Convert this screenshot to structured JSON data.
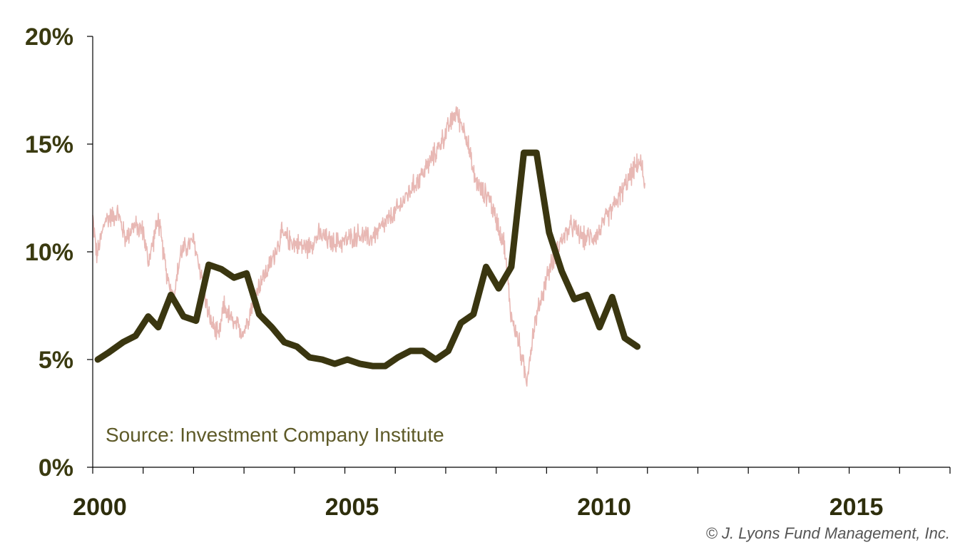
{
  "chart_data": {
    "type": "line",
    "title": "",
    "xlabel": "",
    "ylabel": "",
    "xlim": [
      2000,
      2017
    ],
    "ylim": [
      0,
      20
    ],
    "y_ticks": [
      "0%",
      "5%",
      "10%",
      "15%",
      "20%"
    ],
    "y_tick_values": [
      0,
      5,
      10,
      15,
      20
    ],
    "x_ticks": [
      "2000",
      "2005",
      "2010",
      "2015"
    ],
    "x_tick_values": [
      2000,
      2005,
      2010,
      2015
    ],
    "x_minor_ticks": [
      2000,
      2001,
      2002,
      2003,
      2004,
      2005,
      2006,
      2007,
      2008,
      2009,
      2010,
      2011,
      2012,
      2013,
      2014,
      2015,
      2016,
      2017
    ],
    "grid": false,
    "legend": "none",
    "annotations": {
      "source": "Source: Investment Company Institute",
      "copyright": "© J. Lyons Fund Management, Inc."
    },
    "series": [
      {
        "color": "#e8b8b4",
        "style": "thin noisy background line",
        "noise_amplitude": 0.45,
        "x": [
          2000.0,
          2000.08,
          2000.25,
          2000.5,
          2000.65,
          2000.8,
          2001.0,
          2001.1,
          2001.3,
          2001.45,
          2001.6,
          2001.75,
          2002.0,
          2002.15,
          2002.3,
          2002.5,
          2002.6,
          2002.8,
          2003.0,
          2003.15,
          2003.3,
          2003.5,
          2003.75,
          2004.0,
          2004.25,
          2004.5,
          2004.75,
          2005.0,
          2005.25,
          2005.5,
          2005.75,
          2006.0,
          2006.25,
          2006.5,
          2006.75,
          2007.0,
          2007.2,
          2007.4,
          2007.55,
          2007.7,
          2007.85,
          2008.0,
          2008.15,
          2008.3,
          2008.45,
          2008.6,
          2008.75,
          2009.0,
          2009.25,
          2009.5,
          2009.75,
          2010.0,
          2010.25,
          2010.5,
          2010.7,
          2010.85,
          2010.95
        ],
        "y": [
          11.6,
          9.8,
          11.5,
          11.8,
          10.6,
          11.2,
          11.0,
          9.5,
          11.5,
          9.2,
          7.8,
          10.0,
          10.5,
          9.0,
          7.0,
          6.0,
          7.5,
          6.6,
          6.3,
          7.5,
          8.5,
          9.3,
          10.8,
          10.4,
          10.2,
          10.8,
          10.4,
          10.5,
          10.8,
          10.6,
          11.2,
          11.8,
          12.7,
          13.5,
          14.4,
          15.5,
          16.5,
          15.5,
          13.6,
          12.8,
          12.6,
          11.5,
          10.5,
          7.0,
          5.8,
          4.0,
          6.5,
          8.8,
          10.4,
          11.2,
          10.6,
          10.8,
          11.8,
          12.8,
          13.7,
          14.2,
          13.2
        ]
      },
      {
        "color": "#3a3610",
        "style": "thick line",
        "x": [
          2000.1,
          2000.3,
          2000.6,
          2000.85,
          2001.1,
          2001.3,
          2001.55,
          2001.8,
          2002.05,
          2002.3,
          2002.55,
          2002.8,
          2003.05,
          2003.3,
          2003.55,
          2003.8,
          2004.05,
          2004.3,
          2004.55,
          2004.8,
          2005.05,
          2005.3,
          2005.55,
          2005.8,
          2006.05,
          2006.3,
          2006.55,
          2006.8,
          2007.05,
          2007.3,
          2007.55,
          2007.8,
          2008.05,
          2008.3,
          2008.55,
          2008.8,
          2009.05,
          2009.3,
          2009.55,
          2009.8,
          2010.05,
          2010.3,
          2010.55,
          2010.8
        ],
        "y": [
          5.0,
          5.3,
          5.8,
          6.1,
          7.0,
          6.5,
          8.0,
          7.0,
          6.8,
          9.4,
          9.2,
          8.8,
          9.0,
          7.1,
          6.5,
          5.8,
          5.6,
          5.1,
          5.0,
          4.8,
          5.0,
          4.8,
          4.7,
          4.7,
          5.1,
          5.4,
          5.4,
          5.0,
          5.4,
          6.7,
          7.1,
          9.3,
          8.3,
          9.3,
          14.6,
          14.6,
          10.9,
          9.1,
          7.8,
          8.0,
          6.5,
          7.9,
          6.0,
          5.6
        ]
      }
    ]
  }
}
